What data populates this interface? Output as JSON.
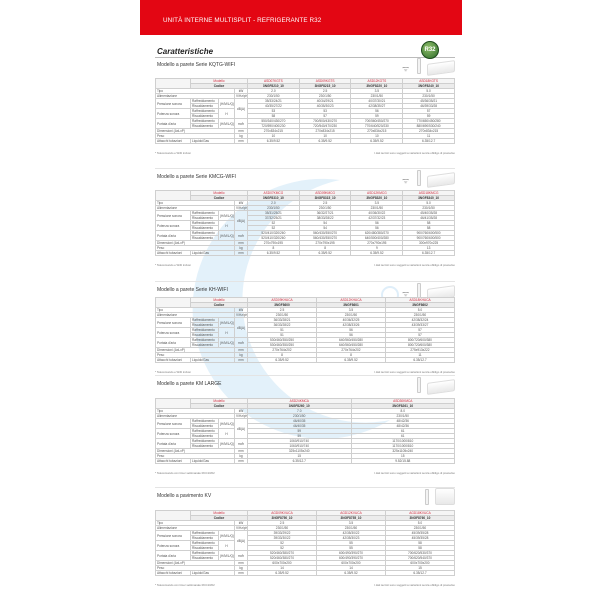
{
  "header": {
    "title": "UNITÀ INTERNE MULTISPLIT - REFRIGERANTE R32"
  },
  "section_heading": "Caratteristiche",
  "badge": "R32",
  "colors": {
    "brand_red": "#e30613",
    "header_text_red": "#d0293b",
    "badge_green": "#2e6b2a"
  },
  "row_labels": {
    "model": "Modello",
    "code": "Codice",
    "tipo": "Tipo",
    "alim": "Alimentazione",
    "press": "Pressione sonora",
    "pot": "Potenza sonora",
    "portata": "Portata d'aria",
    "dim": "Dimensioni (AxLxP)",
    "peso": "Peso",
    "attacchi": "Attacchi tubazioni",
    "raff": "Raffreddamento",
    "risc": "Riscaldamento",
    "hmlq": "(H/M/L/Q)",
    "h": "H",
    "liq": "Liquido/Gas"
  },
  "units": {
    "tipo": "kW",
    "alim": "V/Hz/ph",
    "db": "dB(A)",
    "aria": "m³/h",
    "mm": "mm",
    "kg": "kg"
  },
  "footnote_right": "I dati tecnici sono soggetti a variazioni senza obbligo di preavviso",
  "sections": [
    {
      "title": "Modello a parete Serie KQTG-WIFI",
      "icons": [
        "wifi-icon",
        "remote-icon",
        "wall-unit-icon"
      ],
      "footnote": "* Telecomando e WiFi inclusi",
      "models": [
        "ASD07KGTS",
        "ASD09KGTS",
        "ASD12KGTS",
        "ASD18KGTS"
      ],
      "codes": [
        "3NGF8210_10",
        "3NGF8215_10",
        "3NGF8220_10",
        "3NGF8240_10"
      ],
      "tipo": [
        "2.0",
        "2.5",
        "3.5",
        "5.0"
      ],
      "alim": [
        "230/1/50",
        "230/1/50",
        "230/1/50",
        "230/1/50"
      ],
      "press_r": [
        "35/33/24/21",
        "40/34/29/21",
        "40/37/30/21",
        "45/36/35/21"
      ],
      "press_h": [
        "40/35/27/22",
        "40/35/30/23",
        "42/38/35/27",
        "46/39/33/28"
      ],
      "pot_r": [
        "53",
        "53",
        "56",
        "57"
      ],
      "pot_h": [
        "58",
        "57",
        "59",
        "59"
      ],
      "aria_r": [
        "550/340/430/270",
        "700/500/430/270",
        "700/560/450/270",
        "770/650/450/280"
      ],
      "aria_h": [
        "720/590/400/230",
        "720/540/470/230",
        "770/640/520/230",
        "880/690/530/240"
      ],
      "dim": [
        "270x834x215",
        "270x834x215",
        "270x834x215",
        "270x834x215"
      ],
      "peso": [
        "10",
        "10",
        "10",
        "11"
      ],
      "att": [
        "6.35/9.52",
        "6.35/9.52",
        "6.35/9.52",
        "6.35/12.7"
      ]
    },
    {
      "title": "Modello a parete Serie KMCG-WIFI",
      "icons": [
        "wifi-icon",
        "remote-icon",
        "wall-unit-icon"
      ],
      "footnote": "* Telecomando e WiFi inclusi",
      "models": [
        "ASD07KMCG",
        "ASD09KMCG",
        "ASD12KMCG",
        "ASD18KMCG"
      ],
      "codes": [
        "3NGF8310_10",
        "3NGF8315_10",
        "3NGF8320_10",
        "3NGF8340_10"
      ],
      "tipo": [
        "2.0",
        "2.5",
        "3.5",
        "5.0"
      ],
      "alim": [
        "230/1/50",
        "230/1/50",
        "230/1/50",
        "230/1/50"
      ],
      "press_r": [
        "35/31/25/21",
        "36/32/27/21",
        "40/36/30/22",
        "45/40/35/28"
      ],
      "press_h": [
        "37/32/25/21",
        "38/33/28/22",
        "42/37/32/23",
        "46/41/35/28"
      ],
      "pot_r": [
        "52",
        "54",
        "56",
        "58"
      ],
      "pot_h": [
        "52",
        "54",
        "56",
        "58"
      ],
      "aria_r": [
        "520/410/320/260",
        "560/430/350/270",
        "620/480/380/270",
        "900/760/600/500"
      ],
      "aria_h": [
        "520/410/320/260",
        "560/430/350/270",
        "640/500/400/280",
        "900/760/600/500"
      ],
      "dim": [
        "270x790x195",
        "270x790x195",
        "270x790x195",
        "300x970x225"
      ],
      "peso": [
        "8",
        "8",
        "9",
        "13"
      ],
      "att": [
        "6.35/9.52",
        "6.35/9.52",
        "6.35/9.52",
        "6.35/12.7"
      ]
    },
    {
      "title": "Modello a parete Serie KH-WIFI",
      "icons": [
        "wifi-icon",
        "remote-icon",
        "wall-unit-icon"
      ],
      "footnote": "* Telecomando e WiFi inclusi",
      "models": [
        "ASD09KHUCA",
        "ASD12KHUCA",
        "ASD18KHUCA"
      ],
      "codes": [
        "3NGF8600",
        "3NGF8601",
        "3NGF8602"
      ],
      "tipo": [
        "2.5",
        "3.5",
        "5.0"
      ],
      "alim": [
        "230/1/50",
        "230/1/50",
        "230/1/50"
      ],
      "press_r": [
        "36/33/28/21",
        "40/36/32/25",
        "42/38/32/24"
      ],
      "press_h": [
        "36/33/28/22",
        "42/38/33/26",
        "43/39/33/27"
      ],
      "pot_r": [
        "51",
        "56",
        "57"
      ],
      "pot_h": [
        "51",
        "56",
        "57"
      ],
      "aria_r": [
        "530/460/350/250",
        "640/560/450/280",
        "800/720/600/380"
      ],
      "aria_h": [
        "530/460/350/250",
        "640/560/450/280",
        "800/720/600/380"
      ],
      "dim": [
        "270x764x202",
        "270x764x202",
        "275x913x222"
      ],
      "peso": [
        "8",
        "8",
        "11"
      ],
      "att": [
        "6.35/9.52",
        "6.35/9.52",
        "6.35/12.7"
      ]
    },
    {
      "title": "Modello a parete KM LARGE",
      "icons": [
        "remote-icon",
        "wall-unit-icon"
      ],
      "footnote": "* Telecomando con timer settimanale RCC10/02",
      "models": [
        "ASD24KMCA",
        "ASD30KMCA"
      ],
      "codes": [
        "3NGF8260_10",
        "3NGF8261_10"
      ],
      "tipo": [
        "7.0",
        "8.0"
      ],
      "alim": [
        "230/1/50",
        "230/1/50"
      ],
      "press_r": [
        "46/40/35",
        "48/42/36"
      ],
      "press_h": [
        "46/40/35",
        "48/42/36"
      ],
      "pot_r": [
        "59",
        "61"
      ],
      "pot_h": [
        "59",
        "61"
      ],
      "aria_r": [
        "1060/910/740",
        "1170/1000/810"
      ],
      "aria_h": [
        "1060/910/740",
        "1170/1000/810"
      ],
      "dim": [
        "325x1105x240",
        "325x1105x240"
      ],
      "peso": [
        "15",
        "15"
      ],
      "att": [
        "6.35/12.7",
        "9.52/15.88"
      ]
    },
    {
      "title": "Modello a pavimento KV",
      "icons": [
        "remote-icon",
        "floor-unit-icon"
      ],
      "footnote": "* Telecomando con timer settimanale RCC10/02",
      "models": [
        "AGD09KVUCA",
        "AGD12KVUCA",
        "AGD18KVUCA"
      ],
      "codes": [
        "3NGF8750_10",
        "3NGF8755_10",
        "3NGF8760_10"
      ],
      "tipo": [
        "2.5",
        "3.5",
        "5.0"
      ],
      "alim": [
        "230/1/50",
        "230/1/50",
        "230/1/50"
      ],
      "press_r": [
        "39/33/29/22",
        "42/35/30/22",
        "45/39/35/28"
      ],
      "press_h": [
        "39/33/30/22",
        "42/35/30/23",
        "45/39/35/28"
      ],
      "pot_r": [
        "52",
        "55",
        "58"
      ],
      "pot_h": [
        "52",
        "55",
        "58"
      ],
      "aria_r": [
        "520/460/380/270",
        "600/490/390/270",
        "700/620/530/370"
      ],
      "aria_h": [
        "520/460/380/270",
        "600/490/390/270",
        "700/620/540/370"
      ],
      "dim": [
        "600x700x200",
        "600x700x200",
        "600x700x200"
      ],
      "peso": [
        "14",
        "14",
        "15"
      ],
      "att": [
        "6.35/9.52",
        "6.35/9.52",
        "6.35/12.7"
      ]
    }
  ]
}
